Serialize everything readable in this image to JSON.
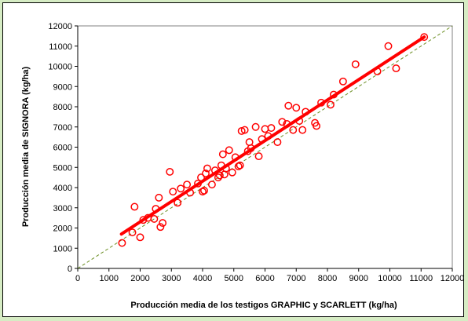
{
  "chart_data": {
    "type": "scatter",
    "xlabel": "Producción media de los testigos GRAPHIC y SCARLETT (kg/ha)",
    "ylabel": "Producción media de SIGNORA  (kg/ha)",
    "xlim": [
      0,
      12000
    ],
    "ylim": [
      0,
      12000
    ],
    "x_ticks": [
      "0",
      "1000",
      "2000",
      "3000",
      "4000",
      "5000",
      "6000",
      "7000",
      "8000",
      "9000",
      "10000",
      "11000",
      "12000"
    ],
    "y_ticks": [
      "0",
      "1000",
      "2000",
      "3000",
      "4000",
      "5000",
      "6000",
      "7000",
      "8000",
      "9000",
      "10000",
      "11000",
      "12000"
    ],
    "grid": false,
    "legend": "none",
    "points": [
      [
        1420,
        1260
      ],
      [
        1750,
        1780
      ],
      [
        1820,
        3050
      ],
      [
        2000,
        1540
      ],
      [
        2100,
        2400
      ],
      [
        2250,
        2500
      ],
      [
        2450,
        2450
      ],
      [
        2500,
        2950
      ],
      [
        2600,
        3500
      ],
      [
        2650,
        2050
      ],
      [
        2720,
        2250
      ],
      [
        2950,
        4780
      ],
      [
        3050,
        3800
      ],
      [
        3200,
        3250
      ],
      [
        3300,
        3950
      ],
      [
        3500,
        4150
      ],
      [
        3600,
        3750
      ],
      [
        3850,
        4200
      ],
      [
        3950,
        4500
      ],
      [
        4000,
        3800
      ],
      [
        4050,
        3850
      ],
      [
        4100,
        4700
      ],
      [
        4150,
        4950
      ],
      [
        4300,
        4150
      ],
      [
        4400,
        4850
      ],
      [
        4500,
        4500
      ],
      [
        4550,
        4600
      ],
      [
        4600,
        5100
      ],
      [
        4650,
        5650
      ],
      [
        4700,
        4650
      ],
      [
        4750,
        4950
      ],
      [
        4850,
        5850
      ],
      [
        4950,
        4750
      ],
      [
        5050,
        5500
      ],
      [
        5150,
        5050
      ],
      [
        5200,
        5100
      ],
      [
        5250,
        6800
      ],
      [
        5350,
        6850
      ],
      [
        5450,
        5800
      ],
      [
        5500,
        6250
      ],
      [
        5550,
        5950
      ],
      [
        5700,
        7000
      ],
      [
        5800,
        5550
      ],
      [
        5900,
        6400
      ],
      [
        6000,
        6900
      ],
      [
        6100,
        6550
      ],
      [
        6200,
        6950
      ],
      [
        6400,
        6250
      ],
      [
        6550,
        7250
      ],
      [
        6700,
        7150
      ],
      [
        6750,
        8050
      ],
      [
        6900,
        6850
      ],
      [
        7000,
        7950
      ],
      [
        7100,
        7300
      ],
      [
        7200,
        6850
      ],
      [
        7300,
        7750
      ],
      [
        7600,
        7200
      ],
      [
        7650,
        7050
      ],
      [
        7800,
        8200
      ],
      [
        8100,
        8100
      ],
      [
        8200,
        8600
      ],
      [
        8500,
        9250
      ],
      [
        8900,
        10100
      ],
      [
        9600,
        9750
      ],
      [
        9950,
        11000
      ],
      [
        10200,
        9900
      ],
      [
        11100,
        11450
      ]
    ],
    "trendline": {
      "x": [
        1400,
        11100
      ],
      "y": [
        1700,
        11450
      ]
    },
    "reference_line": {
      "x": [
        0,
        12000
      ],
      "y": [
        0,
        12000
      ]
    },
    "colors": {
      "points": "#ff0000",
      "trendline": "#ff0000",
      "reference_line": "#6b8e23"
    }
  }
}
